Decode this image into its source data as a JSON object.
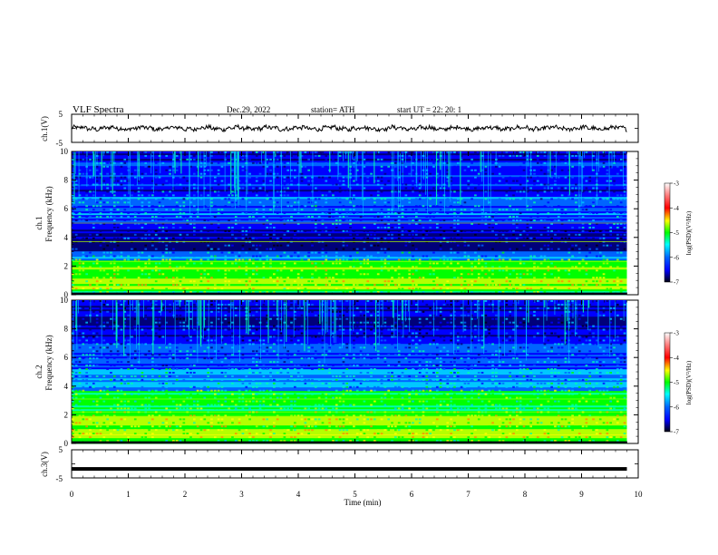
{
  "header": {
    "title": "VLF  Spectra",
    "date": "Dec.29, 2022",
    "station": "station= ATH",
    "start": "start  UT  =    22: 20: 1"
  },
  "colors": {
    "spectrogram": [
      "#000010",
      "#00007a",
      "#0000ff",
      "#0064ff",
      "#00c8ff",
      "#00ffaa",
      "#00ff00",
      "#b4ff00",
      "#ffff00",
      "#ff8c00",
      "#ff0000",
      "#ff8080",
      "#ffffff"
    ]
  },
  "chart_data": [
    {
      "type": "line",
      "name": "ch1-waveform",
      "ylabel": "ch.1(V)",
      "ylim": [
        -5,
        5
      ],
      "y_ticks": [
        "5",
        "-5"
      ],
      "xlim": [
        0,
        10
      ]
    },
    {
      "type": "heatmap",
      "name": "ch1-spectrogram",
      "ylabel": "ch.1\nFrequency  (kHz)",
      "ylim": [
        0,
        10
      ],
      "y_ticks": [
        "0",
        "2",
        "4",
        "6",
        "8",
        "10"
      ],
      "xlim": [
        0,
        10
      ],
      "data_end_min": 9.8,
      "colorbar": {
        "label": "log(PSD)(V²/Hz)",
        "range": [
          -7,
          -3
        ],
        "ticks": [
          "-3",
          "-4",
          "-5",
          "-6",
          "-7"
        ]
      }
    },
    {
      "type": "heatmap",
      "name": "ch2-spectrogram",
      "ylabel": "ch.2\nFrequency  (kHz)",
      "ylim": [
        0,
        10
      ],
      "y_ticks": [
        "0",
        "2",
        "4",
        "6",
        "8",
        "10"
      ],
      "xlim": [
        0,
        10
      ],
      "data_end_min": 9.8,
      "colorbar": {
        "label": "log(PSD)(V²/Hz)",
        "range": [
          -7,
          -3
        ],
        "ticks": [
          "-3",
          "-4",
          "-5",
          "-6",
          "-7"
        ]
      }
    },
    {
      "type": "line",
      "name": "ch3-waveform",
      "ylabel": "ch.3(V)",
      "ylim": [
        -5,
        5
      ],
      "y_ticks": [
        "5",
        "-5"
      ],
      "xlim": [
        0,
        10
      ],
      "level": -1.8
    }
  ],
  "x_axis": {
    "label": "Time  (min)",
    "ticks": [
      "0",
      "1",
      "2",
      "3",
      "4",
      "5",
      "6",
      "7",
      "8",
      "9",
      "10"
    ]
  }
}
